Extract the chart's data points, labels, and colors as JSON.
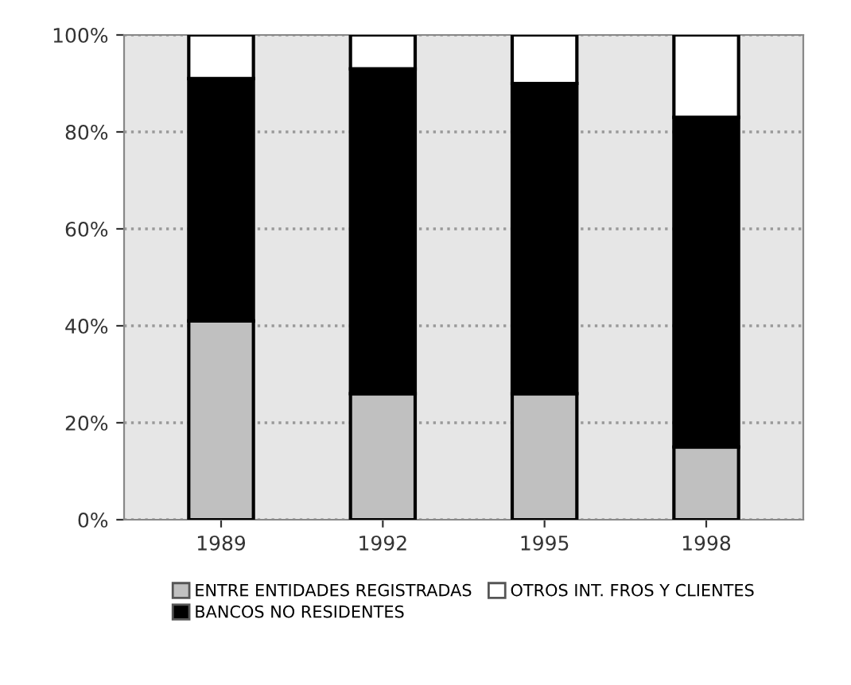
{
  "chart_data": {
    "type": "bar",
    "stacked": true,
    "categories": [
      "1989",
      "1992",
      "1995",
      "1998"
    ],
    "series": [
      {
        "name": "ENTRE ENTIDADES REGISTRADAS",
        "color": "#c0c0c0",
        "values": [
          41,
          26,
          26,
          15
        ]
      },
      {
        "name": "BANCOS NO RESIDENTES",
        "color": "#000000",
        "values": [
          50,
          67,
          64,
          68
        ]
      },
      {
        "name": "OTROS INT. FROS Y CLIENTES",
        "color": "#ffffff",
        "values": [
          9,
          7,
          10,
          17
        ]
      }
    ],
    "ylim": [
      0,
      100
    ],
    "yticks": [
      {
        "value": 0,
        "label": "0%"
      },
      {
        "value": 20,
        "label": "20%"
      },
      {
        "value": 40,
        "label": "40%"
      },
      {
        "value": 60,
        "label": "60%"
      },
      {
        "value": 80,
        "label": "80%"
      },
      {
        "value": 100,
        "label": "100%"
      }
    ],
    "grid": "y",
    "legend": "bottom"
  }
}
